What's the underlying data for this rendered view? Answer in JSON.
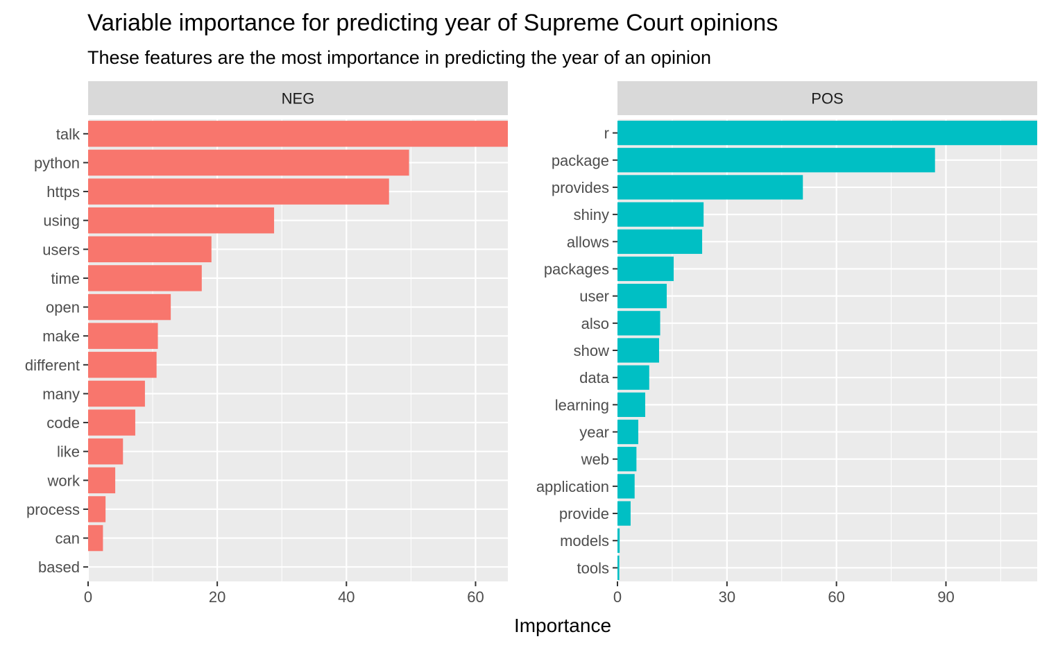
{
  "chart_data": {
    "type": "bar",
    "orientation": "horizontal",
    "title": "Variable importance for predicting year of Supreme Court opinions",
    "subtitle": "These features are the most importance in predicting the year of an opinion",
    "xlabel": "Importance",
    "ylabel": "",
    "grid": true,
    "legend": "none",
    "panels": [
      {
        "name": "NEG",
        "color": "#F8766D",
        "xlim": [
          0,
          65
        ],
        "ticks": [
          0,
          20,
          40,
          60
        ],
        "categories": [
          "talk",
          "python",
          "https",
          "using",
          "users",
          "time",
          "open",
          "make",
          "different",
          "many",
          "code",
          "like",
          "work",
          "process",
          "can",
          "based"
        ],
        "values": [
          65,
          49.7,
          46.6,
          28.8,
          19.1,
          17.6,
          12.8,
          10.8,
          10.6,
          8.8,
          7.3,
          5.4,
          4.2,
          2.7,
          2.3,
          0
        ]
      },
      {
        "name": "POS",
        "color": "#00BFC4",
        "xlim": [
          0,
          115
        ],
        "ticks": [
          0,
          30,
          60,
          90
        ],
        "categories": [
          "r",
          "package",
          "provides",
          "shiny",
          "allows",
          "packages",
          "user",
          "also",
          "show",
          "data",
          "learning",
          "year",
          "web",
          "application",
          "provide",
          "models",
          "tools"
        ],
        "values": [
          115,
          87,
          50.8,
          23.6,
          23.2,
          15.4,
          13.5,
          11.7,
          11.4,
          8.7,
          7.6,
          5.7,
          5.2,
          4.7,
          3.6,
          0.6,
          0.5
        ]
      }
    ]
  }
}
